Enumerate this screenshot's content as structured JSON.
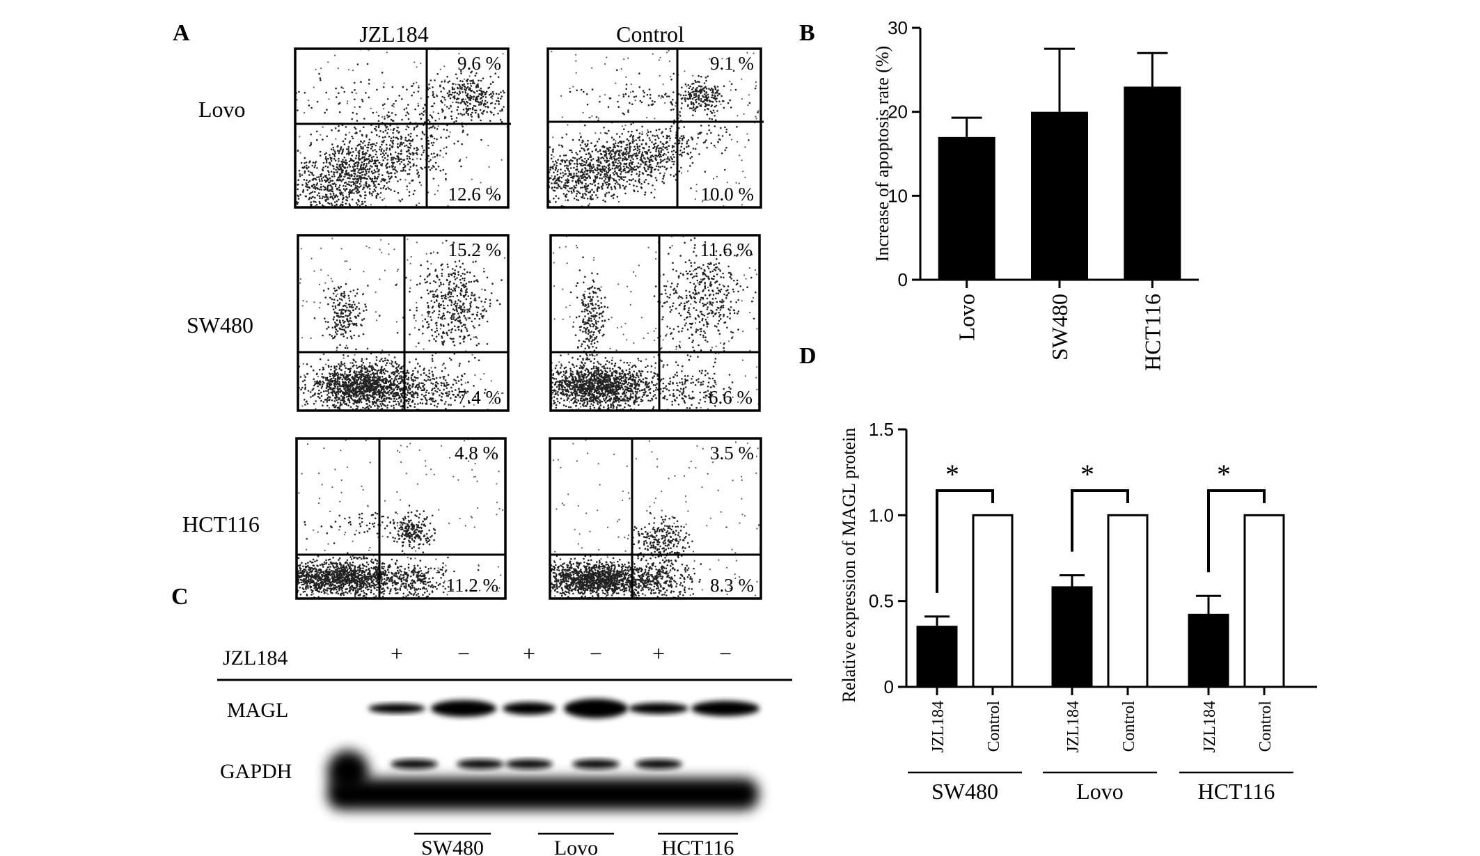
{
  "panel_labels": {
    "a": "A",
    "b": "B",
    "c": "C",
    "d": "D"
  },
  "panel_a": {
    "column_headers": [
      "JZL184",
      "Control"
    ],
    "row_labels": [
      "Lovo",
      "SW480",
      "HCT116"
    ],
    "quadrant_values": [
      {
        "jzl_upper": "9.6 %",
        "jzl_lower": "12.6 %",
        "ctrl_upper": "9.1 %",
        "ctrl_lower": "10.0 %"
      },
      {
        "jzl_upper": "15.2 %",
        "jzl_lower": "7.4 %",
        "ctrl_upper": "11.6 %",
        "ctrl_lower": "6.6 %"
      },
      {
        "jzl_upper": "4.8 %",
        "jzl_lower": "11.2 %",
        "ctrl_upper": "3.5 %",
        "ctrl_lower": "8.3 %"
      }
    ]
  },
  "panel_c": {
    "treatment_label": "JZL184",
    "lane_signs": [
      "+",
      "−",
      "+",
      "−",
      "+",
      "−"
    ],
    "band_labels": [
      "MAGL",
      "GAPDH"
    ],
    "group_labels": [
      "SW480",
      "Lovo",
      "HCT116"
    ]
  },
  "chart_data": [
    {
      "type": "bar",
      "panel": "B",
      "categories": [
        "Lovo",
        "SW480",
        "HCT116"
      ],
      "values": [
        17,
        20,
        23
      ],
      "errors": [
        2.3,
        7.5,
        4
      ],
      "ylabel": "Increase of apoptosis rate (%)",
      "xlabel": "",
      "ylim": [
        0,
        30
      ],
      "yticks": [
        0,
        10,
        20,
        30
      ],
      "bar_color": "#000000"
    },
    {
      "type": "bar",
      "panel": "D",
      "groups": [
        "SW480",
        "Lovo",
        "HCT116"
      ],
      "bar_labels": [
        "JZL184",
        "Control"
      ],
      "series": [
        {
          "values": [
            0.35,
            0.58,
            0.42
          ],
          "errors": [
            0.06,
            0.07,
            0.11
          ],
          "fill": "#000000"
        },
        {
          "values": [
            1.0,
            1.0,
            1.0
          ],
          "errors": [
            0,
            0,
            0
          ],
          "fill": "#ffffff"
        }
      ],
      "significance": [
        "*",
        "*",
        "*"
      ],
      "ylabel": "Relative expression of MAGL protein",
      "xlabel": "",
      "ylim": [
        0,
        1.5
      ],
      "yticks": [
        "0",
        "0.5",
        "1.0",
        "1.5"
      ]
    }
  ]
}
